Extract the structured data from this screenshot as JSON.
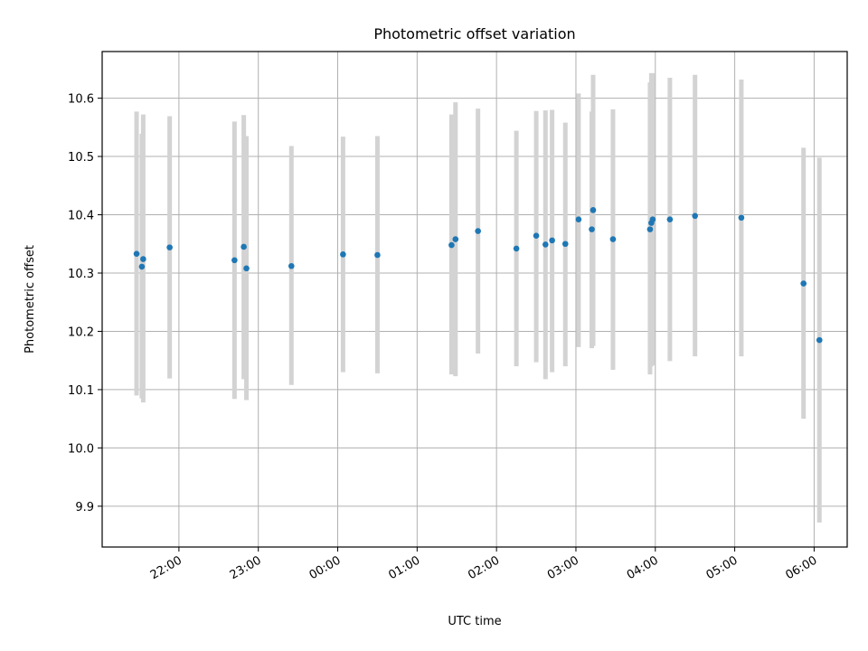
{
  "chart_data": {
    "type": "scatter",
    "title": "Photometric offset variation",
    "xlabel": "UTC time",
    "ylabel": "Photometric offset",
    "x_axis_kind": "time",
    "xlim": [
      "21:02",
      "06:25"
    ],
    "ylim": [
      9.83,
      10.68
    ],
    "xticks": [
      "22:00",
      "23:00",
      "00:00",
      "01:00",
      "02:00",
      "03:00",
      "04:00",
      "05:00",
      "06:00"
    ],
    "yticks": [
      9.9,
      10.0,
      10.1,
      10.2,
      10.3,
      10.4,
      10.5,
      10.6
    ],
    "grid": true,
    "colors": {
      "marker": "#1f77b4",
      "errorbar": "#d3d3d3",
      "grid": "#b0b0b0"
    },
    "points": [
      {
        "x": "21:28",
        "y": 10.333,
        "y_low": 10.09,
        "y_high": 10.577
      },
      {
        "x": "21:32",
        "y": 10.311,
        "y_low": 10.085,
        "y_high": 10.539
      },
      {
        "x": "21:33",
        "y": 10.324,
        "y_low": 10.078,
        "y_high": 10.572
      },
      {
        "x": "21:53",
        "y": 10.344,
        "y_low": 10.119,
        "y_high": 10.569
      },
      {
        "x": "22:42",
        "y": 10.322,
        "y_low": 10.084,
        "y_high": 10.56
      },
      {
        "x": "22:49",
        "y": 10.345,
        "y_low": 10.118,
        "y_high": 10.571
      },
      {
        "x": "22:51",
        "y": 10.308,
        "y_low": 10.082,
        "y_high": 10.535
      },
      {
        "x": "23:25",
        "y": 10.312,
        "y_low": 10.108,
        "y_high": 10.518
      },
      {
        "x": "00:04",
        "y": 10.332,
        "y_low": 10.13,
        "y_high": 10.534
      },
      {
        "x": "00:30",
        "y": 10.331,
        "y_low": 10.128,
        "y_high": 10.535
      },
      {
        "x": "01:26",
        "y": 10.348,
        "y_low": 10.126,
        "y_high": 10.572
      },
      {
        "x": "01:29",
        "y": 10.358,
        "y_low": 10.123,
        "y_high": 10.593
      },
      {
        "x": "01:46",
        "y": 10.372,
        "y_low": 10.162,
        "y_high": 10.582
      },
      {
        "x": "02:15",
        "y": 10.342,
        "y_low": 10.14,
        "y_high": 10.544
      },
      {
        "x": "02:30",
        "y": 10.364,
        "y_low": 10.147,
        "y_high": 10.578
      },
      {
        "x": "02:37",
        "y": 10.349,
        "y_low": 10.118,
        "y_high": 10.579
      },
      {
        "x": "02:42",
        "y": 10.356,
        "y_low": 10.13,
        "y_high": 10.58
      },
      {
        "x": "02:52",
        "y": 10.35,
        "y_low": 10.14,
        "y_high": 10.558
      },
      {
        "x": "03:02",
        "y": 10.392,
        "y_low": 10.173,
        "y_high": 10.608
      },
      {
        "x": "03:12",
        "y": 10.375,
        "y_low": 10.171,
        "y_high": 10.577
      },
      {
        "x": "03:13",
        "y": 10.408,
        "y_low": 10.175,
        "y_high": 10.64
      },
      {
        "x": "03:28",
        "y": 10.358,
        "y_low": 10.134,
        "y_high": 10.581
      },
      {
        "x": "03:56",
        "y": 10.375,
        "y_low": 10.126,
        "y_high": 10.627
      },
      {
        "x": "03:57",
        "y": 10.386,
        "y_low": 10.14,
        "y_high": 10.643
      },
      {
        "x": "03:58",
        "y": 10.392,
        "y_low": 10.142,
        "y_high": 10.643
      },
      {
        "x": "04:11",
        "y": 10.392,
        "y_low": 10.149,
        "y_high": 10.635
      },
      {
        "x": "04:30",
        "y": 10.398,
        "y_low": 10.157,
        "y_high": 10.64
      },
      {
        "x": "05:05",
        "y": 10.395,
        "y_low": 10.157,
        "y_high": 10.632
      },
      {
        "x": "05:52",
        "y": 10.282,
        "y_low": 10.05,
        "y_high": 10.515
      },
      {
        "x": "06:04",
        "y": 10.185,
        "y_low": 9.872,
        "y_high": 10.498
      }
    ]
  }
}
